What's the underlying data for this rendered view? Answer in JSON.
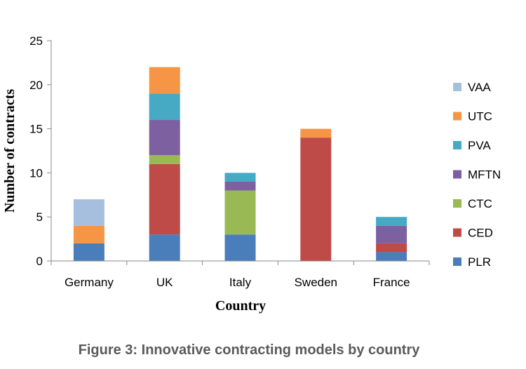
{
  "caption": "Figure 3: Innovative contracting models by country",
  "chart_data": {
    "type": "bar",
    "stacked": true,
    "xlabel": "Country",
    "ylabel": "Number of contracts",
    "ylim": [
      0,
      25
    ],
    "yticks": [
      0,
      5,
      10,
      15,
      20,
      25
    ],
    "grid": false,
    "legend_position": "right",
    "categories": [
      "Germany",
      "UK",
      "Italy",
      "Sweden",
      "France"
    ],
    "series": [
      {
        "name": "PLR",
        "color": "#4a7ebb",
        "values": [
          2,
          3,
          3,
          0,
          1
        ]
      },
      {
        "name": "CED",
        "color": "#be4b48",
        "values": [
          0,
          8,
          0,
          14,
          1
        ]
      },
      {
        "name": "CTC",
        "color": "#98b954",
        "values": [
          0,
          1,
          5,
          0,
          0
        ]
      },
      {
        "name": "MFTN",
        "color": "#7d60a0",
        "values": [
          0,
          4,
          1,
          0,
          2
        ]
      },
      {
        "name": "PVA",
        "color": "#46aac5",
        "values": [
          0,
          3,
          1,
          0,
          1
        ]
      },
      {
        "name": "UTC",
        "color": "#f69545",
        "values": [
          2,
          3,
          0,
          1,
          0
        ]
      },
      {
        "name": "VAA",
        "color": "#a7bfde",
        "values": [
          3,
          0,
          0,
          0,
          0
        ]
      }
    ]
  }
}
